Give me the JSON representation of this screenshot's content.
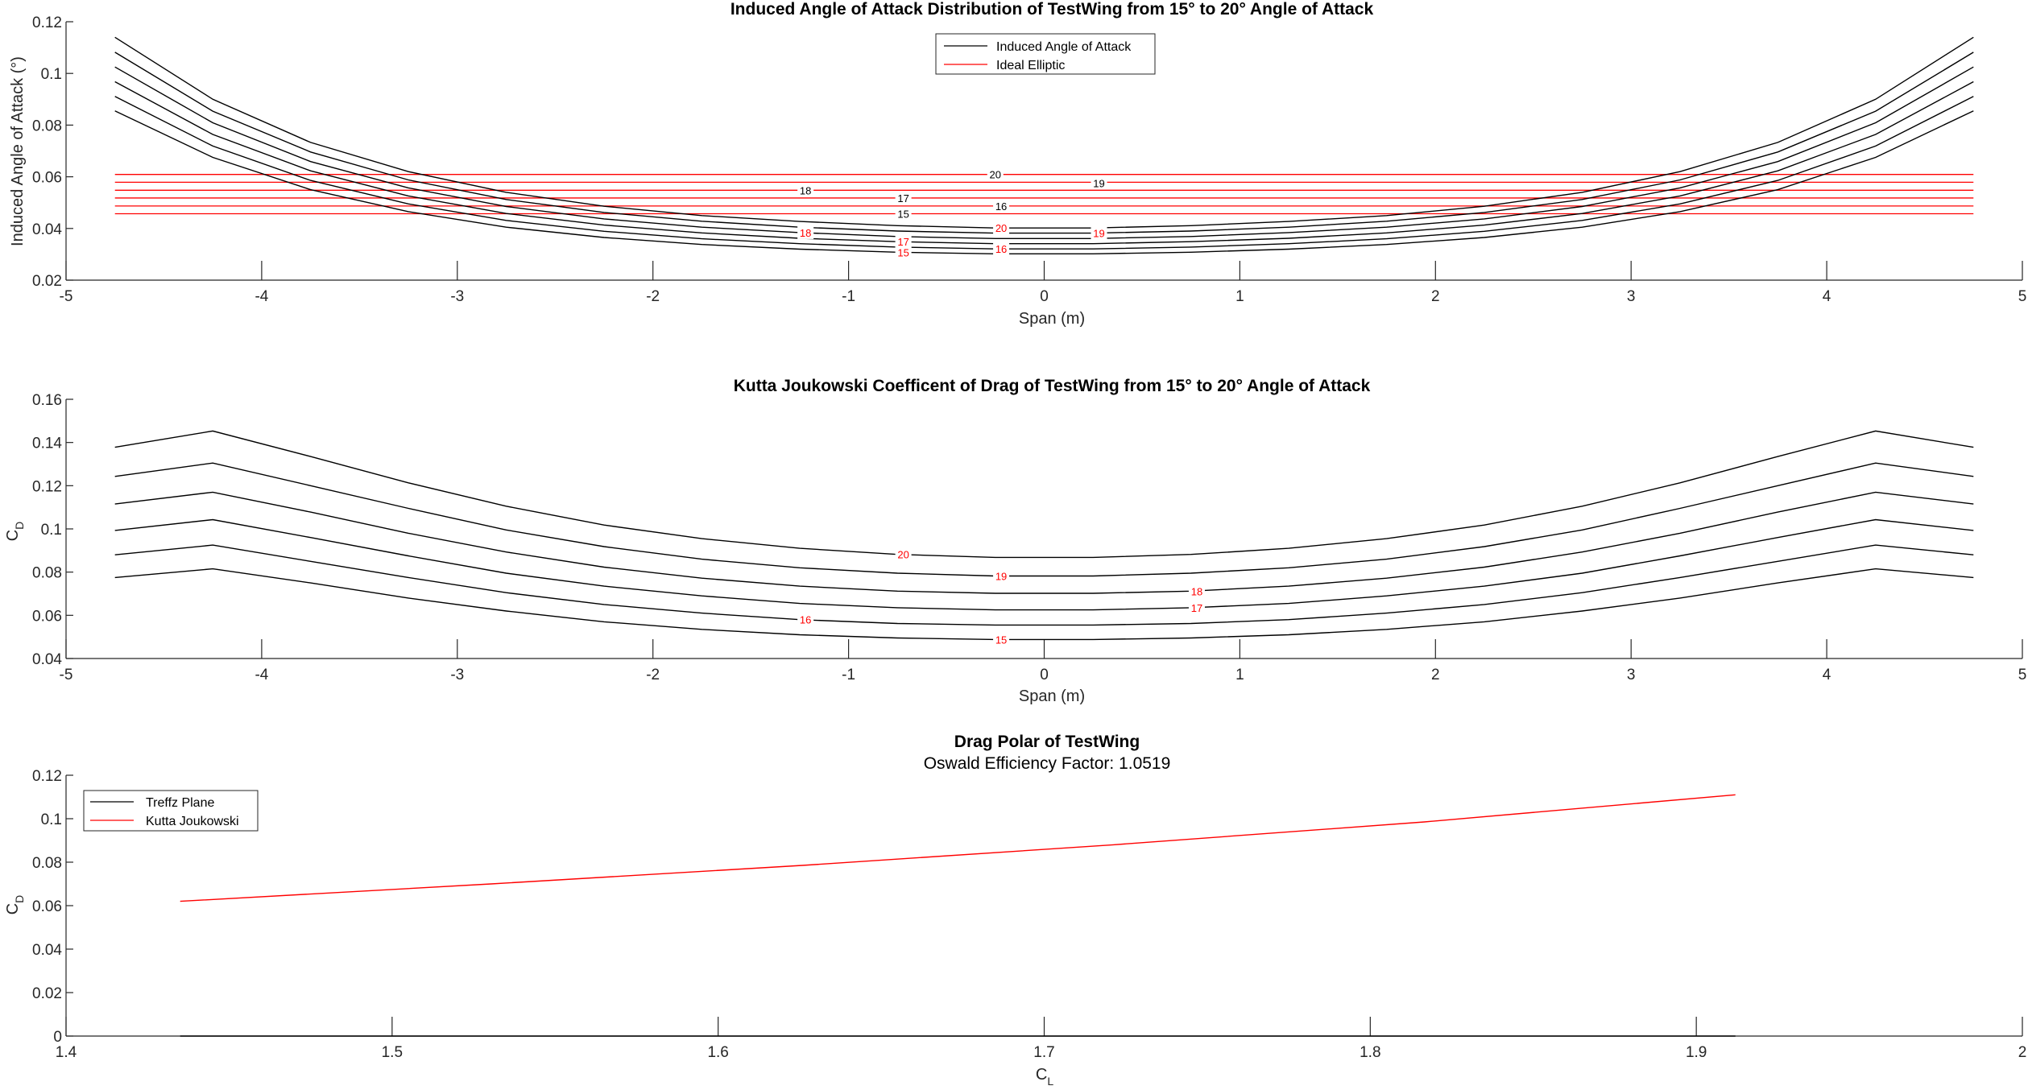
{
  "figure": {
    "background": "#ffffff",
    "axis_color": "#262626"
  },
  "chart_data": [
    {
      "type": "line",
      "title": "Induced Angle of Attack Distribution of TestWing from 15° to 20° Angle of Attack",
      "xlabel": "Span (m)",
      "ylabel": "Induced Angle of Attack (°)",
      "xlim": [
        -5,
        5
      ],
      "ylim": [
        0.02,
        0.12
      ],
      "xticks": [
        "-5",
        "-4",
        "-3",
        "-2",
        "-1",
        "0",
        "1",
        "2",
        "3",
        "4",
        "5"
      ],
      "yticks": [
        "0.02",
        "0.04",
        "0.06",
        "0.08",
        "0.1",
        "0.12"
      ],
      "grid": false,
      "legend_position": "top-center",
      "legend": [
        {
          "label": "Induced Angle of Attack",
          "color": "#000000"
        },
        {
          "label": "Ideal Elliptic",
          "color": "#ff0000"
        }
      ],
      "x": [
        -4.75,
        -4.25,
        -3.75,
        -3.25,
        -2.75,
        -2.25,
        -1.75,
        -1.25,
        -0.75,
        -0.25,
        0.25,
        0.75,
        1.25,
        1.75,
        2.25,
        2.75,
        3.25,
        3.75,
        4.25,
        4.75
      ],
      "series": [
        {
          "angle": 15,
          "color": "#000000",
          "values": [
            0.0855,
            0.0675,
            0.055,
            0.0465,
            0.0405,
            0.0365,
            0.0338,
            0.032,
            0.0308,
            0.0302,
            0.0302,
            0.0308,
            0.032,
            0.0338,
            0.0365,
            0.0405,
            0.0465,
            0.055,
            0.0675,
            0.0855
          ]
        },
        {
          "angle": 16,
          "color": "#000000",
          "values": [
            0.0911,
            0.0719,
            0.0586,
            0.0495,
            0.0431,
            0.0389,
            0.036,
            0.0341,
            0.0328,
            0.0321,
            0.0321,
            0.0328,
            0.0341,
            0.036,
            0.0389,
            0.0431,
            0.0495,
            0.0586,
            0.0719,
            0.0911
          ]
        },
        {
          "angle": 17,
          "color": "#000000",
          "values": [
            0.0968,
            0.0764,
            0.0623,
            0.0526,
            0.0458,
            0.0413,
            0.0383,
            0.0362,
            0.0349,
            0.0341,
            0.0341,
            0.0349,
            0.0362,
            0.0383,
            0.0413,
            0.0458,
            0.0526,
            0.0623,
            0.0764,
            0.0968
          ]
        },
        {
          "angle": 18,
          "color": "#000000",
          "values": [
            0.1025,
            0.0809,
            0.0659,
            0.0557,
            0.0485,
            0.0437,
            0.0405,
            0.0384,
            0.0369,
            0.0361,
            0.0361,
            0.0369,
            0.0384,
            0.0405,
            0.0437,
            0.0485,
            0.0557,
            0.0659,
            0.0809,
            0.1025
          ]
        },
        {
          "angle": 19,
          "color": "#000000",
          "values": [
            0.1082,
            0.0854,
            0.0696,
            0.0588,
            0.0512,
            0.0462,
            0.0428,
            0.0405,
            0.039,
            0.0382,
            0.0382,
            0.039,
            0.0405,
            0.0428,
            0.0462,
            0.0512,
            0.0588,
            0.0696,
            0.0854,
            0.1082
          ]
        },
        {
          "angle": 20,
          "color": "#000000",
          "values": [
            0.114,
            0.09,
            0.0733,
            0.062,
            0.054,
            0.0486,
            0.045,
            0.0427,
            0.0411,
            0.0402,
            0.0402,
            0.0411,
            0.0427,
            0.045,
            0.0486,
            0.054,
            0.062,
            0.0733,
            0.09,
            0.114
          ]
        }
      ],
      "elliptic": [
        {
          "angle": 15,
          "color": "#ff0000",
          "value": 0.0457
        },
        {
          "angle": 16,
          "color": "#ff0000",
          "value": 0.0487
        },
        {
          "angle": 17,
          "color": "#ff0000",
          "value": 0.0518
        },
        {
          "angle": 18,
          "color": "#ff0000",
          "value": 0.0548
        },
        {
          "angle": 19,
          "color": "#ff0000",
          "value": 0.0579
        },
        {
          "angle": 20,
          "color": "#ff0000",
          "value": 0.0609
        }
      ],
      "contour_labels": [
        {
          "text": "20",
          "x": -0.25,
          "y": 0.0609,
          "color": "#000000"
        },
        {
          "text": "19",
          "x": 0.28,
          "y": 0.0576,
          "color": "#000000"
        },
        {
          "text": "18",
          "x": -1.22,
          "y": 0.0548,
          "color": "#000000"
        },
        {
          "text": "17",
          "x": -0.72,
          "y": 0.0518,
          "color": "#000000"
        },
        {
          "text": "16",
          "x": -0.22,
          "y": 0.0487,
          "color": "#000000"
        },
        {
          "text": "15",
          "x": -0.72,
          "y": 0.0457,
          "color": "#000000"
        },
        {
          "text": "20",
          "x": -0.22,
          "y": 0.0402,
          "color": "#ff0000"
        },
        {
          "text": "19",
          "x": 0.28,
          "y": 0.0382,
          "color": "#ff0000"
        },
        {
          "text": "18",
          "x": -1.22,
          "y": 0.0384,
          "color": "#ff0000"
        },
        {
          "text": "17",
          "x": -0.72,
          "y": 0.0349,
          "color": "#ff0000"
        },
        {
          "text": "16",
          "x": -0.22,
          "y": 0.0321,
          "color": "#ff0000"
        },
        {
          "text": "15",
          "x": -0.72,
          "y": 0.0308,
          "color": "#ff0000"
        }
      ]
    },
    {
      "type": "line",
      "title": "Kutta Joukowski Coefficent of Drag of TestWing from 15° to 20° Angle of Attack",
      "xlabel": "Span (m)",
      "ylabel": "C",
      "ylabel_sub": "D",
      "xlim": [
        -5,
        5
      ],
      "ylim": [
        0.04,
        0.16
      ],
      "xticks": [
        "-5",
        "-4",
        "-3",
        "-2",
        "-1",
        "0",
        "1",
        "2",
        "3",
        "4",
        "5"
      ],
      "yticks": [
        "0.04",
        "0.06",
        "0.08",
        "0.1",
        "0.12",
        "0.14",
        "0.16"
      ],
      "grid": false,
      "x": [
        -4.75,
        -4.25,
        -3.75,
        -3.25,
        -2.75,
        -2.25,
        -1.75,
        -1.25,
        -0.75,
        -0.25,
        0.25,
        0.75,
        1.25,
        1.75,
        2.25,
        2.75,
        3.25,
        3.75,
        4.25,
        4.75
      ],
      "series": [
        {
          "angle": 15,
          "color": "#000000",
          "values": [
            0.0775,
            0.0815,
            0.075,
            0.068,
            0.062,
            0.057,
            0.0535,
            0.051,
            0.0495,
            0.0488,
            0.0488,
            0.0495,
            0.051,
            0.0535,
            0.057,
            0.062,
            0.068,
            0.075,
            0.0815,
            0.0775
          ]
        },
        {
          "angle": 16,
          "color": "#000000",
          "values": [
            0.088,
            0.0925,
            0.085,
            0.0775,
            0.0705,
            0.065,
            0.061,
            0.058,
            0.0562,
            0.0555,
            0.0555,
            0.0562,
            0.058,
            0.061,
            0.065,
            0.0705,
            0.0775,
            0.085,
            0.0925,
            0.088
          ]
        },
        {
          "angle": 17,
          "color": "#000000",
          "values": [
            0.0993,
            0.1043,
            0.096,
            0.0875,
            0.0795,
            0.0735,
            0.069,
            0.0655,
            0.0635,
            0.0625,
            0.0625,
            0.0635,
            0.0655,
            0.069,
            0.0735,
            0.0795,
            0.0875,
            0.096,
            0.1043,
            0.0993
          ]
        },
        {
          "angle": 18,
          "color": "#000000",
          "values": [
            0.1115,
            0.117,
            0.1078,
            0.098,
            0.0893,
            0.0823,
            0.0772,
            0.0735,
            0.0712,
            0.0702,
            0.0702,
            0.0712,
            0.0735,
            0.0772,
            0.0823,
            0.0893,
            0.098,
            0.1078,
            0.117,
            0.1115
          ]
        },
        {
          "angle": 19,
          "color": "#000000",
          "values": [
            0.1243,
            0.1305,
            0.12,
            0.1095,
            0.0995,
            0.0918,
            0.086,
            0.082,
            0.0795,
            0.0782,
            0.0782,
            0.0795,
            0.082,
            0.086,
            0.0918,
            0.0995,
            0.1095,
            0.12,
            0.1305,
            0.1243
          ]
        },
        {
          "angle": 20,
          "color": "#000000",
          "values": [
            0.1378,
            0.1453,
            0.1335,
            0.1213,
            0.1105,
            0.1018,
            0.0955,
            0.091,
            0.0882,
            0.0868,
            0.0868,
            0.0882,
            0.091,
            0.0955,
            0.1018,
            0.1105,
            0.1213,
            0.1335,
            0.1453,
            0.1378
          ]
        }
      ],
      "contour_labels": [
        {
          "text": "20",
          "x": -0.72,
          "y": 0.0882,
          "color": "#ff0000"
        },
        {
          "text": "19",
          "x": -0.22,
          "y": 0.0782,
          "color": "#ff0000"
        },
        {
          "text": "18",
          "x": 0.78,
          "y": 0.0712,
          "color": "#ff0000"
        },
        {
          "text": "17",
          "x": 0.78,
          "y": 0.0635,
          "color": "#ff0000"
        },
        {
          "text": "16",
          "x": -1.22,
          "y": 0.058,
          "color": "#ff0000"
        },
        {
          "text": "15",
          "x": -0.22,
          "y": 0.0488,
          "color": "#ff0000"
        }
      ]
    },
    {
      "type": "line",
      "title": "Drag Polar of TestWing",
      "subtitle": "Oswald Efficiency Factor: 1.0519",
      "xlabel": "C",
      "xlabel_sub": "L",
      "ylabel": "C",
      "ylabel_sub": "D",
      "xlim": [
        1.4,
        2.0
      ],
      "ylim": [
        0,
        0.12
      ],
      "xticks": [
        "1.4",
        "1.5",
        "1.6",
        "1.7",
        "1.8",
        "1.9",
        "2"
      ],
      "yticks": [
        "0",
        "0.02",
        "0.04",
        "0.06",
        "0.08",
        "0.1",
        "0.12"
      ],
      "grid": false,
      "legend_position": "top-left",
      "legend": [
        {
          "label": "Treffz Plane",
          "color": "#000000"
        },
        {
          "label": "Kutta Joukowski",
          "color": "#ff0000"
        }
      ],
      "series": [
        {
          "name": "Treffz Plane",
          "color": "#000000",
          "x": [
            1.435,
            1.5304,
            1.6258,
            1.7212,
            1.8166,
            1.912
          ],
          "values": [
            0,
            0,
            0,
            0,
            0,
            0
          ]
        },
        {
          "name": "Kutta Joukowski",
          "color": "#ff0000",
          "x": [
            1.435,
            1.5304,
            1.6258,
            1.7212,
            1.8166,
            1.912
          ],
          "values": [
            0.062,
            0.07,
            0.0785,
            0.088,
            0.0985,
            0.111
          ]
        }
      ]
    }
  ]
}
